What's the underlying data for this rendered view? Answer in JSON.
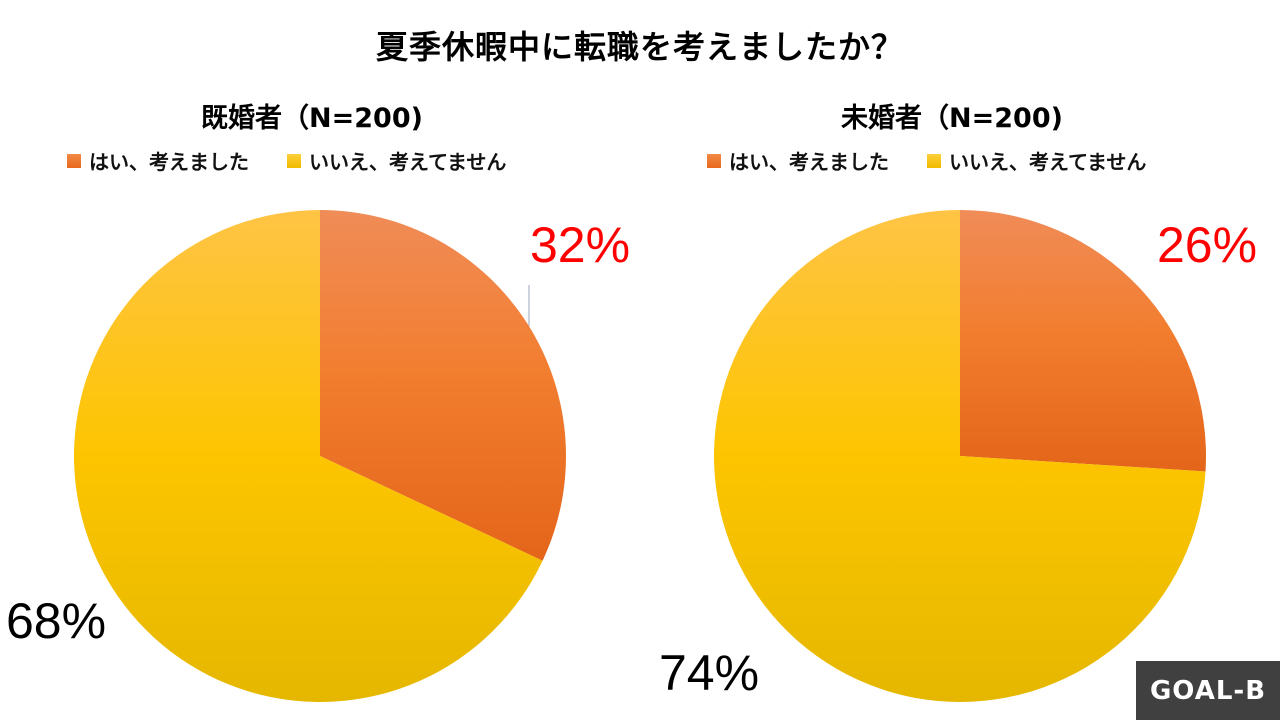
{
  "title": "夏季休暇中に転職を考えましたか？",
  "legend": {
    "yes_label": "はい、考えました",
    "no_label": "いいえ、考えてません",
    "yes_color": "#f07f2e",
    "no_color": "#fcc400"
  },
  "panels": [
    {
      "title": "既婚者（N=200)",
      "yes_pct_label": "32%",
      "no_pct_label": "68%"
    },
    {
      "title": "未婚者（N=200)",
      "yes_pct_label": "26%",
      "no_pct_label": "74%"
    }
  ],
  "logo": "GOAL-B",
  "chart_data": [
    {
      "type": "pie",
      "title": "既婚者（N=200)",
      "categories": [
        "はい、考えました",
        "いいえ、考えてません"
      ],
      "values": [
        32,
        68
      ],
      "unit": "%",
      "colors": [
        "#f07f2e",
        "#fcc400"
      ],
      "legend_position": "top",
      "start_angle": "12 o'clock, clockwise"
    },
    {
      "type": "pie",
      "title": "未婚者（N=200)",
      "categories": [
        "はい、考えました",
        "いいえ、考えてません"
      ],
      "values": [
        26,
        74
      ],
      "unit": "%",
      "colors": [
        "#f07f2e",
        "#fcc400"
      ],
      "legend_position": "top",
      "start_angle": "12 o'clock, clockwise"
    }
  ]
}
